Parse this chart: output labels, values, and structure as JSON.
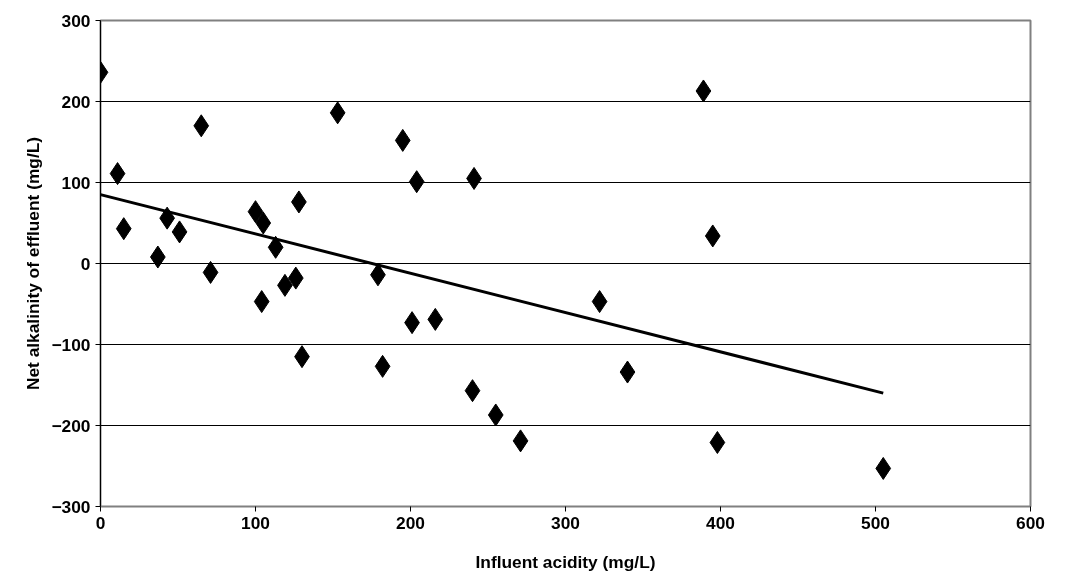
{
  "chart_data": {
    "type": "scatter",
    "xlabel": "Influent acidity (mg/L)",
    "ylabel": "Net alkalinity of effluent (mg/L)",
    "xlim": [
      0,
      600
    ],
    "xticks": [
      0,
      100,
      200,
      300,
      400,
      500,
      600
    ],
    "ylim": [
      -300,
      300
    ],
    "yticks": [
      -300,
      -200,
      -100,
      0,
      100,
      200,
      300
    ],
    "grid": "y",
    "marker": "diamond",
    "series": [
      {
        "color": "#000000",
        "x": [
          0,
          11,
          15,
          37,
          43,
          51,
          65,
          71,
          100,
          105,
          104,
          113,
          119,
          126,
          128,
          130,
          153,
          179,
          182,
          195,
          204,
          201,
          216,
          241,
          240,
          255,
          271,
          322,
          340,
          389,
          395,
          398,
          505
        ],
        "values": [
          236,
          111,
          43,
          8,
          56,
          39,
          170,
          -11,
          64,
          50,
          -47,
          20,
          -27,
          -18,
          76,
          -115,
          186,
          -14,
          -127,
          152,
          101,
          -73,
          -69,
          105,
          -157,
          -187,
          -219,
          -47,
          -134,
          213,
          34,
          -221,
          -253
        ]
      },
      {
        "type": "line",
        "marker": "none",
        "color": "#000000",
        "x": [
          0,
          505
        ],
        "values": [
          85,
          -160
        ]
      }
    ]
  }
}
